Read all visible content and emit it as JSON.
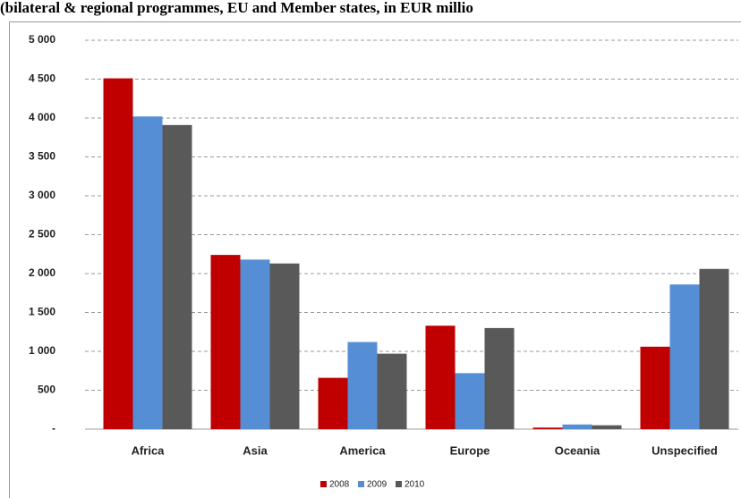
{
  "chart_data": {
    "type": "bar",
    "title": "(bilateral & regional programmes, EU and Member states, in EUR millio",
    "categories": [
      "Africa",
      "Asia",
      "America",
      "Europe",
      "Oceania",
      "Unspecified"
    ],
    "series": [
      {
        "name": "2008",
        "color": "#c00000",
        "values": [
          4510,
          2240,
          660,
          1330,
          20,
          1060
        ]
      },
      {
        "name": "2009",
        "color": "#558ed5",
        "values": [
          4020,
          2180,
          1120,
          720,
          60,
          1860
        ]
      },
      {
        "name": "2010",
        "color": "#595959",
        "values": [
          3910,
          2130,
          970,
          1300,
          50,
          2060
        ]
      }
    ],
    "ylim": [
      0,
      5000
    ],
    "yticks": [
      {
        "value": 0,
        "label": "-"
      },
      500,
      {
        "value": 1000,
        "label": "1 000"
      },
      {
        "value": 1500,
        "label": "1 500"
      },
      {
        "value": 2000,
        "label": "2 000"
      },
      {
        "value": 2500,
        "label": "2 500"
      },
      {
        "value": 3000,
        "label": "3 000"
      },
      {
        "value": 3500,
        "label": "3 500"
      },
      {
        "value": 4000,
        "label": "4 000"
      },
      {
        "value": 4500,
        "label": "4 500"
      },
      {
        "value": 5000,
        "label": "5 000"
      }
    ],
    "grid": true,
    "legend": "bottom"
  }
}
